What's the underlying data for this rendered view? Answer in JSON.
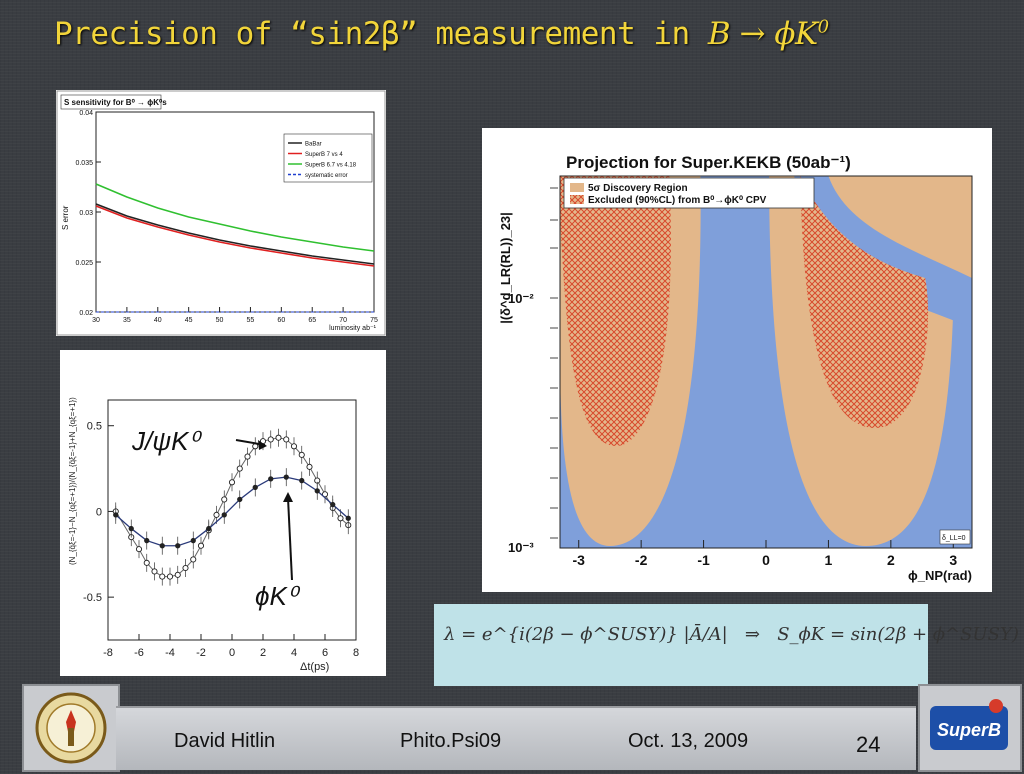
{
  "slide": {
    "title_prefix": "Precision of “sin2β” measurement in ",
    "title_math": "B → ϕK",
    "title_sup": "0"
  },
  "chart_data": [
    {
      "type": "line",
      "title": "S sensitivity for B⁰ → ϕK⁰s",
      "xlabel": "luminosity ab⁻¹",
      "ylabel": "S error",
      "xlim": [
        30,
        75
      ],
      "ylim": [
        0.02,
        0.04
      ],
      "x_ticks": [
        30,
        35,
        40,
        45,
        50,
        55,
        60,
        65,
        70,
        75
      ],
      "y_ticks": [
        0.02,
        0.025,
        0.03,
        0.035,
        0.04
      ],
      "legend_position": "top-right",
      "x": [
        30,
        35,
        40,
        45,
        50,
        55,
        60,
        65,
        70,
        75
      ],
      "series": [
        {
          "name": "BaBar",
          "color": "#222222",
          "values": [
            0.0308,
            0.0296,
            0.0287,
            0.0279,
            0.0272,
            0.0266,
            0.0261,
            0.0256,
            0.0252,
            0.0248
          ]
        },
        {
          "name": "SuperB 7 vs 4",
          "color": "#e02020",
          "values": [
            0.0306,
            0.0294,
            0.0285,
            0.0277,
            0.027,
            0.0264,
            0.0259,
            0.0254,
            0.025,
            0.0246
          ]
        },
        {
          "name": "SuperB 6.7 vs 4.18",
          "color": "#30c030",
          "values": [
            0.0328,
            0.0315,
            0.0304,
            0.0295,
            0.0288,
            0.0281,
            0.0275,
            0.027,
            0.0265,
            0.0261
          ]
        },
        {
          "name": "systematic error",
          "color": "#2040d0",
          "values": [
            0.02,
            0.02,
            0.02,
            0.02,
            0.02,
            0.02,
            0.02,
            0.02,
            0.02,
            0.02
          ]
        }
      ]
    },
    {
      "type": "scatter",
      "xlabel": "Δt(ps)",
      "ylabel": "(N_{q̄ξ=-1}−N_{qξ=+1})/(N_{q̄ξ=-1}+N_{qξ=+1})",
      "xlim": [
        -8,
        8
      ],
      "ylim": [
        -0.75,
        0.65
      ],
      "x_ticks": [
        -8,
        -6,
        -4,
        -2,
        0,
        2,
        4,
        6,
        8
      ],
      "y_ticks": [
        -0.5,
        0,
        0.5
      ],
      "annotations": [
        "J/ψK⁰",
        "ϕK⁰"
      ],
      "series": [
        {
          "name": "J/ψK⁰",
          "marker": "open-circle",
          "x": [
            -7.5,
            -6.5,
            -6,
            -5.5,
            -5,
            -4.5,
            -4,
            -3.5,
            -3,
            -2.5,
            -2,
            -1.5,
            -1,
            -0.5,
            0,
            0.5,
            1,
            1.5,
            2,
            2.5,
            3,
            3.5,
            4,
            4.5,
            5,
            5.5,
            6,
            6.5,
            7,
            7.5
          ],
          "values": [
            0.0,
            -0.15,
            -0.22,
            -0.3,
            -0.35,
            -0.38,
            -0.38,
            -0.37,
            -0.33,
            -0.28,
            -0.2,
            -0.11,
            -0.02,
            0.07,
            0.17,
            0.25,
            0.32,
            0.38,
            0.41,
            0.42,
            0.43,
            0.42,
            0.38,
            0.33,
            0.26,
            0.18,
            0.1,
            0.02,
            -0.04,
            -0.08
          ]
        },
        {
          "name": "ϕK⁰",
          "marker": "filled-circle",
          "x": [
            -7.5,
            -6.5,
            -5.5,
            -4.5,
            -3.5,
            -2.5,
            -1.5,
            -0.5,
            0.5,
            1.5,
            2.5,
            3.5,
            4.5,
            5.5,
            6.5,
            7.5
          ],
          "values": [
            -0.02,
            -0.1,
            -0.17,
            -0.2,
            -0.2,
            -0.17,
            -0.1,
            -0.02,
            0.07,
            0.14,
            0.19,
            0.2,
            0.18,
            0.12,
            0.04,
            -0.04
          ]
        }
      ]
    },
    {
      "type": "area",
      "title": "Projection for Super.KEKB (50ab⁻¹)",
      "xlabel": "ϕ_NP(rad)",
      "ylabel": "|(δ^d_LR(RL))_23|",
      "xlim": [
        -3.3,
        3.3
      ],
      "y_tick_labels": [
        "10⁻²",
        "10⁻³"
      ],
      "x_ticks": [
        -3,
        -2,
        -1,
        0,
        1,
        2,
        3
      ],
      "legend": [
        "5σ Discovery Region",
        "Excluded (90%CL) from B⁰→ϕK⁰ CPV"
      ],
      "legend_position": "top-left",
      "colors": {
        "background": "#7f9fda",
        "discovery": "#e3b78a",
        "excluded": "#d9552f"
      },
      "corner_label": "δ_LL=0"
    }
  ],
  "formula": {
    "lhs": "λ = e^{i(2β − ϕ^SUSY)} |Ā/A|",
    "arrow": "⇒",
    "rhs": "S_ϕK = sin(2β + ϕ^SUSY)"
  },
  "footer": {
    "author": "David Hitlin",
    "event": "Phito.Psi09",
    "date": "Oct. 13, 2009",
    "page": "24"
  },
  "logos": {
    "left": "caltech-seal",
    "right": "superb-logo",
    "right_text": "SuperB"
  }
}
